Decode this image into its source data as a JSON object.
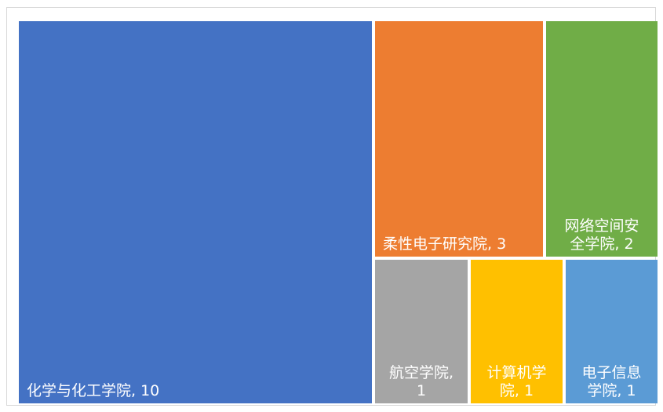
{
  "chart_data": {
    "type": "treemap",
    "title": "",
    "items": [
      {
        "name": "化学与化工学院",
        "value": 10,
        "color": "#4472C4",
        "label_lines": [
          "化学与化工学院, 10"
        ],
        "label_align": "start"
      },
      {
        "name": "柔性电子研究院",
        "value": 3,
        "color": "#ED7D31",
        "label_lines": [
          "柔性电子研究院, 3"
        ],
        "label_align": "start"
      },
      {
        "name": "网络空间安全学院",
        "value": 2,
        "color": "#70AD47",
        "label_lines": [
          "网络空间安",
          "全学院, 2"
        ],
        "label_align": "middle"
      },
      {
        "name": "航空学院",
        "value": 1,
        "color": "#A5A5A5",
        "label_lines": [
          "航空学院,",
          "1"
        ],
        "label_align": "middle"
      },
      {
        "name": "计算机学院",
        "value": 1,
        "color": "#FFC000",
        "label_lines": [
          "计算机学",
          "院, 1"
        ],
        "label_align": "middle"
      },
      {
        "name": "电子信息学院",
        "value": 1,
        "color": "#5B9BD5",
        "label_lines": [
          "电子信息",
          "学院, 1"
        ],
        "label_align": "middle"
      }
    ]
  }
}
